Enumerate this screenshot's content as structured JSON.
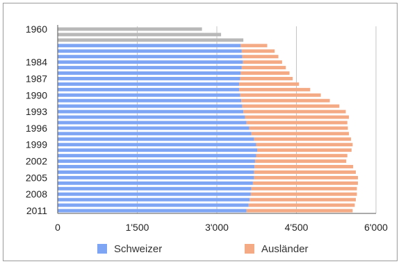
{
  "chart_data": {
    "type": "bar",
    "orientation": "horizontal",
    "stacked": true,
    "title": "",
    "xlabel": "",
    "ylabel": "",
    "xlim": [
      0,
      6000
    ],
    "x_ticks": [
      0,
      1500,
      3000,
      4500,
      6000
    ],
    "x_tick_labels": [
      "0",
      "1'500",
      "3'000",
      "4'500",
      "6'000"
    ],
    "y_tick_labels": [
      "1960",
      "1984",
      "1987",
      "1990",
      "1993",
      "1996",
      "1999",
      "2002",
      "2005",
      "2008",
      "2011"
    ],
    "grid": true,
    "legend_position": "bottom",
    "categories": [
      "1960",
      "1970",
      "1980",
      "1981",
      "1982",
      "1983",
      "1984",
      "1985",
      "1986",
      "1987",
      "1988",
      "1989",
      "1990",
      "1991",
      "1992",
      "1993",
      "1994",
      "1995",
      "1996",
      "1997",
      "1998",
      "1999",
      "2000",
      "2001",
      "2002",
      "2003",
      "2004",
      "2005",
      "2006",
      "2007",
      "2008",
      "2009",
      "2010",
      "2011"
    ],
    "total_series": {
      "name": "",
      "color": "#b8b8b8",
      "values": [
        2720,
        3080,
        3500,
        null,
        null,
        null,
        null,
        null,
        null,
        null,
        null,
        null,
        null,
        null,
        null,
        null,
        null,
        null,
        null,
        null,
        null,
        null,
        null,
        null,
        null,
        null,
        null,
        null,
        null,
        null,
        null,
        null,
        null,
        null
      ]
    },
    "series": [
      {
        "name": "Schweizer",
        "color": "#7ea5f4",
        "values": [
          null,
          null,
          null,
          3450,
          3470,
          3480,
          3490,
          3470,
          3450,
          3440,
          3420,
          3420,
          3440,
          3460,
          3480,
          3500,
          3530,
          3560,
          3610,
          3650,
          3700,
          3740,
          3760,
          3740,
          3720,
          3710,
          3700,
          3700,
          3680,
          3650,
          3640,
          3620,
          3600,
          3560
        ]
      },
      {
        "name": "Ausländer",
        "color": "#f4aa84",
        "values": [
          null,
          null,
          null,
          500,
          620,
          680,
          740,
          830,
          920,
          990,
          1130,
          1340,
          1520,
          1670,
          1830,
          1930,
          1960,
          1900,
          1860,
          1840,
          1830,
          1820,
          1780,
          1720,
          1720,
          1860,
          1920,
          1960,
          1980,
          1990,
          2000,
          2000,
          2000,
          2000
        ]
      }
    ]
  }
}
